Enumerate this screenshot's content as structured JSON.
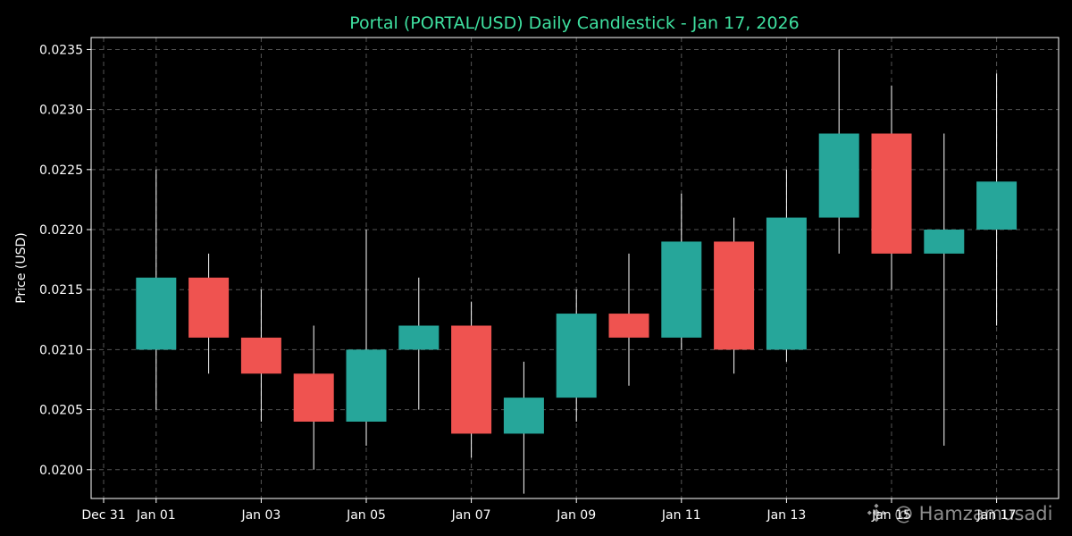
{
  "colors": {
    "background": "#000000",
    "up": "#26a69a",
    "down": "#ef5350",
    "title": "#3fe0a0",
    "axis": "#ffffff",
    "grid": "#555555"
  },
  "chart_data": {
    "type": "candlestick",
    "title": "Portal (PORTAL/USD) Daily Candlestick - Jan 17, 2026",
    "xlabel": "",
    "ylabel": "Price (USD)",
    "ylim": [
      0.01976,
      0.0236
    ],
    "xlim_days": [
      -0.5,
      17.5
    ],
    "grid": true,
    "y_ticks": [
      0.02,
      0.0205,
      0.021,
      0.0215,
      0.022,
      0.0225,
      0.023,
      0.0235
    ],
    "y_tick_labels": [
      "0.0200",
      "0.0205",
      "0.0210",
      "0.0215",
      "0.0220",
      "0.0225",
      "0.0230",
      "0.0235"
    ],
    "x_ticks": [
      {
        "day": 0,
        "label": "Dec 31"
      },
      {
        "day": 1,
        "label": "Jan 01"
      },
      {
        "day": 3,
        "label": "Jan 03"
      },
      {
        "day": 5,
        "label": "Jan 05"
      },
      {
        "day": 7,
        "label": "Jan 07"
      },
      {
        "day": 9,
        "label": "Jan 09"
      },
      {
        "day": 11,
        "label": "Jan 11"
      },
      {
        "day": 13,
        "label": "Jan 13"
      },
      {
        "day": 15,
        "label": "Jan 15"
      },
      {
        "day": 17,
        "label": "Jan 17"
      }
    ],
    "candles": [
      {
        "date": "Jan 01",
        "day": 1,
        "open": 0.021,
        "high": 0.0225,
        "low": 0.0205,
        "close": 0.0216
      },
      {
        "date": "Jan 02",
        "day": 2,
        "open": 0.0216,
        "high": 0.0218,
        "low": 0.0208,
        "close": 0.0211
      },
      {
        "date": "Jan 03",
        "day": 3,
        "open": 0.0211,
        "high": 0.0215,
        "low": 0.0204,
        "close": 0.0208
      },
      {
        "date": "Jan 04",
        "day": 4,
        "open": 0.0208,
        "high": 0.0212,
        "low": 0.02,
        "close": 0.0204
      },
      {
        "date": "Jan 05",
        "day": 5,
        "open": 0.0204,
        "high": 0.022,
        "low": 0.0202,
        "close": 0.021
      },
      {
        "date": "Jan 06",
        "day": 6,
        "open": 0.021,
        "high": 0.0216,
        "low": 0.0205,
        "close": 0.0212
      },
      {
        "date": "Jan 07",
        "day": 7,
        "open": 0.0212,
        "high": 0.0214,
        "low": 0.0201,
        "close": 0.0203
      },
      {
        "date": "Jan 08",
        "day": 8,
        "open": 0.0203,
        "high": 0.0209,
        "low": 0.0198,
        "close": 0.0206
      },
      {
        "date": "Jan 09",
        "day": 9,
        "open": 0.0206,
        "high": 0.0215,
        "low": 0.0204,
        "close": 0.0213
      },
      {
        "date": "Jan 10",
        "day": 10,
        "open": 0.0213,
        "high": 0.0218,
        "low": 0.0207,
        "close": 0.0211
      },
      {
        "date": "Jan 11",
        "day": 11,
        "open": 0.0211,
        "high": 0.0223,
        "low": 0.021,
        "close": 0.0219
      },
      {
        "date": "Jan 12",
        "day": 12,
        "open": 0.0219,
        "high": 0.0221,
        "low": 0.0208,
        "close": 0.021
      },
      {
        "date": "Jan 13",
        "day": 13,
        "open": 0.021,
        "high": 0.0225,
        "low": 0.0209,
        "close": 0.0221
      },
      {
        "date": "Jan 14",
        "day": 14,
        "open": 0.0221,
        "high": 0.0235,
        "low": 0.0218,
        "close": 0.0228
      },
      {
        "date": "Jan 15",
        "day": 15,
        "open": 0.0228,
        "high": 0.0232,
        "low": 0.0215,
        "close": 0.0218
      },
      {
        "date": "Jan 16",
        "day": 16,
        "open": 0.0218,
        "high": 0.0228,
        "low": 0.0202,
        "close": 0.022
      },
      {
        "date": "Jan 17",
        "day": 17,
        "open": 0.022,
        "high": 0.0233,
        "low": 0.0212,
        "close": 0.0224
      }
    ]
  },
  "watermark": {
    "text": "@ Hamzamusadi",
    "icon": "binance-logo-icon"
  }
}
